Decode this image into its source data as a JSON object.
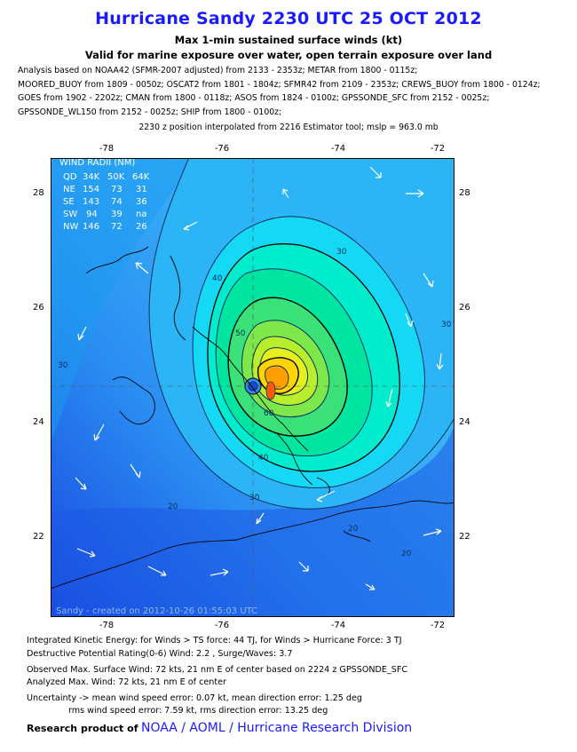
{
  "header": {
    "title": "Hurricane Sandy 2230 UTC 25 OCT 2012",
    "subtitle1": "Max 1-min sustained surface winds (kt)",
    "subtitle2": "Valid for marine exposure over water, open terrain exposure over land"
  },
  "analysis_lines": [
    "Analysis based on NOAA42 (SFMR-2007 adjusted) from 2133 - 2353z; METAR from 1800 - 0115z;",
    "MOORED_BUOY from 1809 - 0050z; OSCAT2 from 1801 - 1804z; SFMR42 from 2109 - 2353z; CREWS_BUOY from 1800 - 0124z;",
    "GOES from 1902 - 2202z; CMAN from 1800 - 0118z; ASOS from 1824 - 0100z; GPSSONDE_SFC from 2152 - 0025z;",
    "GPSSONDE_WL150 from 2152 - 0025z; SHIP from 1800 - 0100z;"
  ],
  "position_note": "2230 z position interpolated from 2216 Estimator tool; mslp = 963.0 mb",
  "map": {
    "lon_ticks": [
      "-78",
      "-76",
      "-74",
      "-72"
    ],
    "lat_ticks": [
      "28",
      "26",
      "24",
      "22"
    ],
    "contour_labels": [
      "30",
      "40",
      "50",
      "60",
      "40",
      "30",
      "20",
      "30",
      "20",
      "30",
      "20"
    ],
    "wind_radii": {
      "title": "WIND RADII (NM)",
      "header": [
        "QD",
        "34K",
        "50K",
        "64K"
      ],
      "rows": [
        [
          "NE",
          "154",
          "73",
          "31"
        ],
        [
          "SE",
          "143",
          "74",
          "36"
        ],
        [
          "SW",
          "94",
          "39",
          "na"
        ],
        [
          "NW",
          "146",
          "72",
          "26"
        ]
      ]
    },
    "credit": "Sandy - created on 2012-10-26 01:55:03 UTC",
    "colors": {
      "ocean_low": "#1e50e6",
      "ts": "#00c8ff",
      "high": "#78e650",
      "peak": "#ff5a00"
    }
  },
  "footer": {
    "ike": "Integrated Kinetic Energy: for Winds > TS force: 44 TJ, for Winds > Hurricane Force: 3 TJ",
    "potential": "Destructive Potential Rating(0-6)   Wind: 2.2 , Surge/Waves: 3.7",
    "observed": "Observed Max. Surface Wind: 72 kts, 21 nm E of center based on 2224 z GPSSONDE_SFC",
    "analyzed": "Analyzed Max. Wind: 72 kts, 21 nm  E of center",
    "uncertainty": "Uncertainty -> mean wind speed error: 0.07 kt, mean direction error: 1.25 deg",
    "rms": "rms wind speed error: 7.59 kt, rms direction error: 13.25 deg",
    "research_prefix": "Research product of",
    "research_org": "NOAA  /  AOML  /  Hurricane Research Division"
  }
}
